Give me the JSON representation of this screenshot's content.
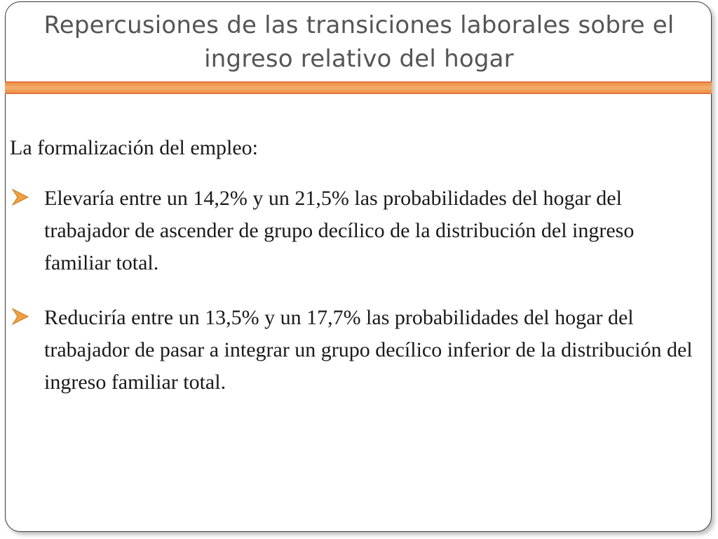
{
  "slide": {
    "title": "Repercusiones de las transiciones laborales sobre el ingreso relativo del hogar",
    "intro": "La formalización del empleo:",
    "bullets": [
      {
        "icon": "arrow-bullet-icon",
        "text": "Elevaría entre un 14,2% y un 21,5% las probabilidades del hogar del trabajador de ascender de grupo decílico de la distribución del ingreso familiar total."
      },
      {
        "icon": "arrow-bullet-icon",
        "text": "Reduciría entre un 13,5% y un 17,7% las probabilidades del hogar del trabajador de pasar a integrar un grupo decílico inferior de la distribución del ingreso familiar total."
      }
    ]
  },
  "colors": {
    "title_text": "#555555",
    "accent_bar": "#ee9a4f",
    "accent_bar_edge": "#e2703d",
    "bullet_icon": "#f0a040",
    "frame_border": "#3a3a3a"
  }
}
